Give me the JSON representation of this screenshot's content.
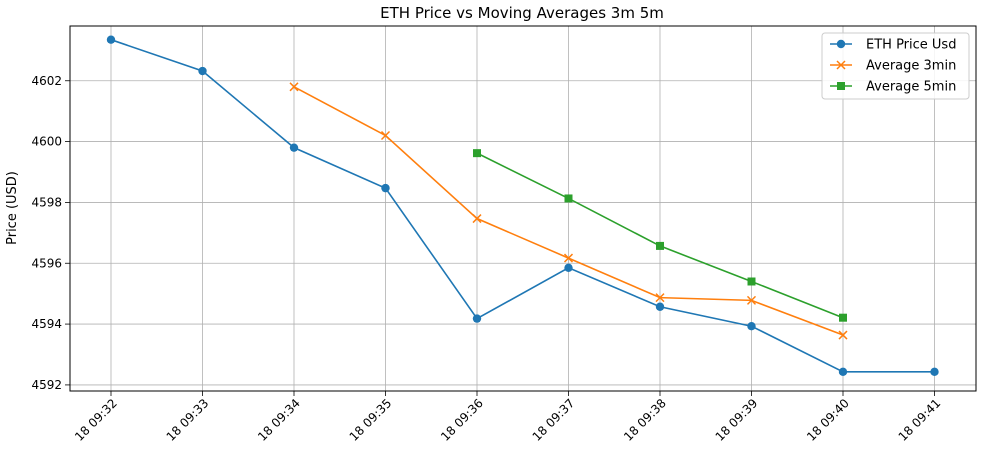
{
  "chart_data": {
    "type": "line",
    "title": "ETH Price vs Moving Averages 3m 5m",
    "xlabel": "",
    "ylabel": "Price (USD)",
    "x": [
      "18 09:32",
      "18 09:33",
      "18 09:34",
      "18 09:35",
      "18 09:36",
      "18 09:37",
      "18 09:38",
      "18 09:39",
      "18 09:40",
      "18 09:41"
    ],
    "ylim": [
      4591.8,
      4603.8
    ],
    "yticks": [
      4592,
      4594,
      4596,
      4598,
      4600,
      4602
    ],
    "grid": true,
    "legend_position": "top-right",
    "series": [
      {
        "name": "ETH Price Usd",
        "color": "#1f77b4",
        "marker": "circle",
        "values": [
          4603.35,
          4602.32,
          4599.8,
          4598.47,
          4594.18,
          4595.85,
          4594.57,
          4593.93,
          4592.43,
          4592.43
        ]
      },
      {
        "name": "Average 3min",
        "color": "#ff7f0e",
        "marker": "x",
        "values": [
          null,
          null,
          4601.8,
          4600.2,
          4597.47,
          4596.17,
          4594.87,
          4594.78,
          4593.64,
          null
        ]
      },
      {
        "name": "Average 5min",
        "color": "#2ca02c",
        "marker": "square",
        "values": [
          null,
          null,
          null,
          null,
          4599.62,
          4598.13,
          4596.57,
          4595.4,
          4594.21,
          null
        ]
      }
    ]
  }
}
